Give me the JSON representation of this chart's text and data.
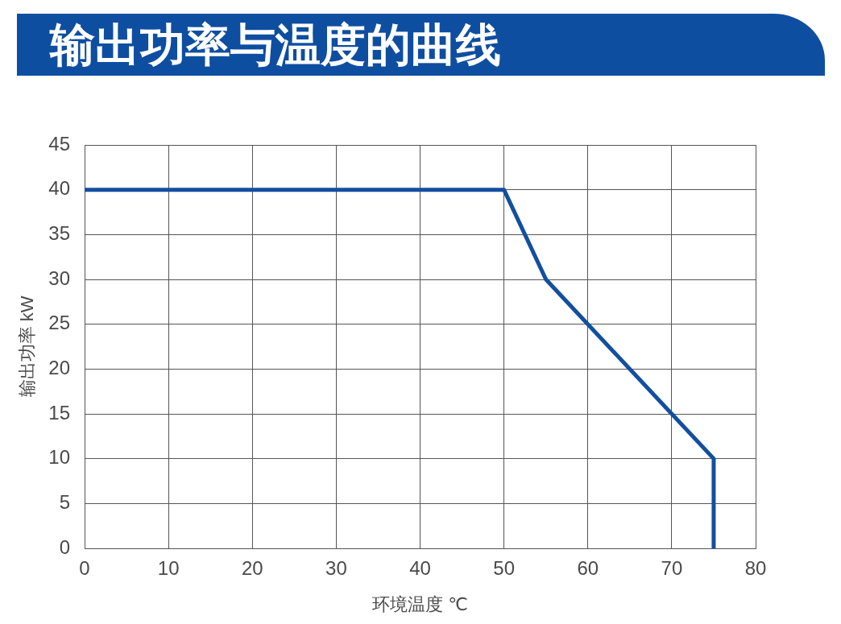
{
  "chart_data": {
    "type": "line",
    "title": "输出功率与温度的曲线",
    "xlabel": "环境温度 ℃",
    "ylabel": "输出功率 kW",
    "x": [
      0,
      50,
      55,
      75,
      75
    ],
    "series": [
      {
        "color": "#124f9f",
        "values": [
          40,
          40,
          30,
          10,
          0
        ]
      }
    ],
    "xlim": [
      0,
      80
    ],
    "xticks": [
      0,
      10,
      20,
      30,
      40,
      50,
      60,
      70,
      80
    ],
    "ylim": [
      0,
      45
    ],
    "yticks": [
      0,
      5,
      10,
      15,
      20,
      25,
      30,
      35,
      40,
      45
    ],
    "grid": true,
    "marker": "none",
    "line_style": "solid"
  }
}
